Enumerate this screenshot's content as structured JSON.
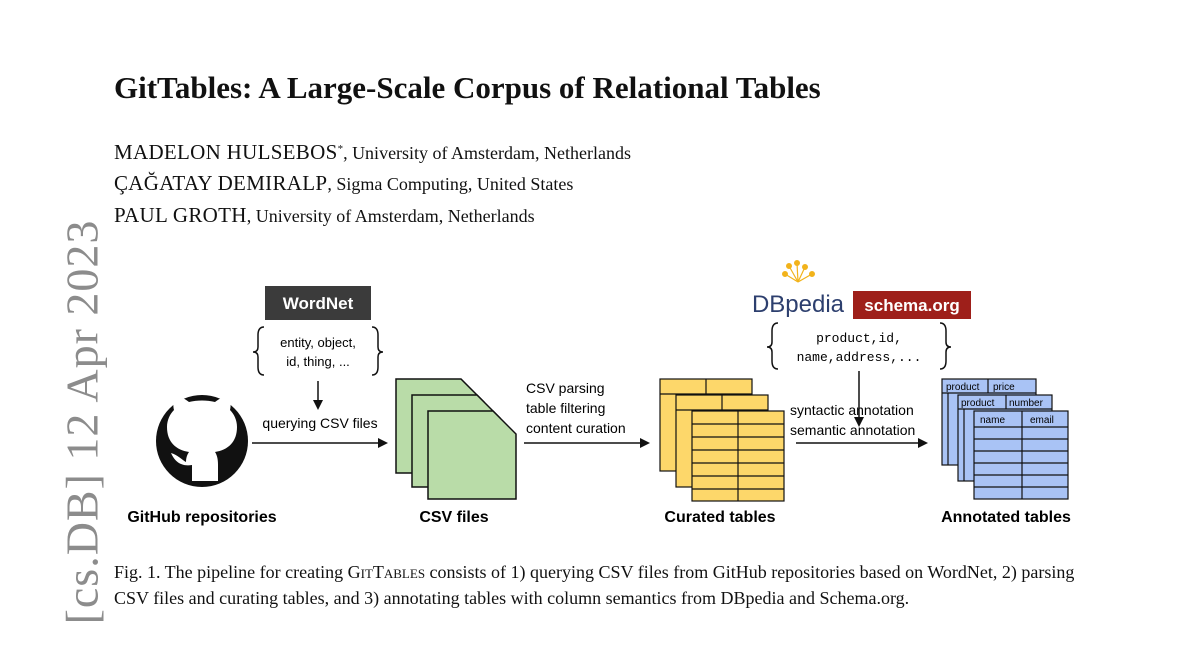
{
  "arxiv_side_label": "[cs.DB]  12 Apr 2023",
  "title": "GitTables: A Large-Scale Corpus of Relational Tables",
  "authors": [
    {
      "name": "MADELON HULSEBOS",
      "mark": "*",
      "affiliation": ", University of Amsterdam, Netherlands"
    },
    {
      "name": "ÇAĞATAY DEMIRALP",
      "mark": "",
      "affiliation": ", Sigma Computing, United States"
    },
    {
      "name": "PAUL GROTH",
      "mark": "",
      "affiliation": ", University of Amsterdam, Netherlands"
    }
  ],
  "figure": {
    "wordnet_label": "WordNet",
    "wordnet_terms": [
      "entity, object,",
      "id, thing, ..."
    ],
    "query_label": "querying CSV files",
    "parse_steps": [
      "CSV parsing",
      "table filtering",
      "content curation"
    ],
    "annotation_steps": [
      "syntactic annotation",
      "semantic annotation"
    ],
    "dbpedia_label": "DBpedia",
    "schema_label": "schema.org",
    "semantic_terms": [
      "product,id,",
      "name,address,..."
    ],
    "annotated_headers": [
      "product",
      "price",
      "product",
      "number",
      "name",
      "email"
    ],
    "stages": [
      "GitHub repositories",
      "CSV files",
      "Curated tables",
      "Annotated tables"
    ],
    "colors": {
      "csv": "#b9dca8",
      "curated": "#fdd76a",
      "annotated": "#a9c3f5",
      "wordnet_bg": "#3b3b3b",
      "schema_bg": "#9e1f1a"
    }
  },
  "caption": {
    "prefix": "Fig. 1.  The pipeline for creating ",
    "name": "GitTables",
    "rest": " consists of 1) querying CSV files from GitHub repositories based on WordNet, 2) parsing CSV files and curating tables, and 3) annotating tables with column semantics from DBpedia and Schema.org."
  }
}
